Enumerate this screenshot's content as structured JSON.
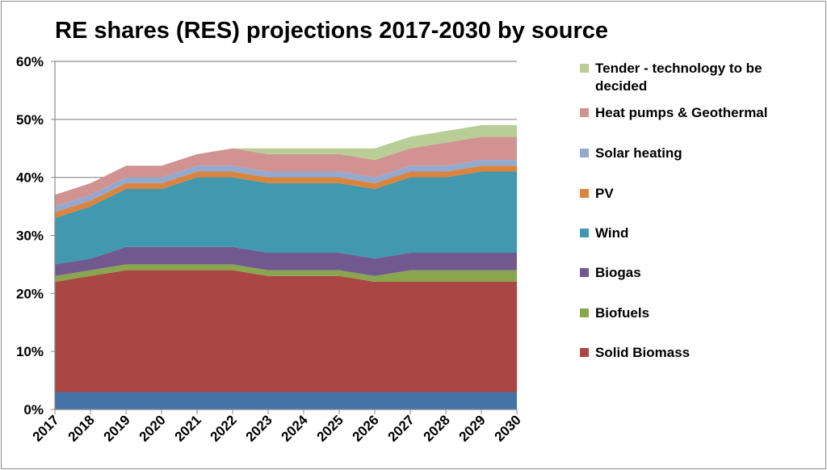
{
  "chart_data": {
    "type": "area",
    "stacked": true,
    "title": "RE shares (RES) projections 2017-2030 by source",
    "xlabel": "",
    "ylabel": "",
    "categories": [
      "2017",
      "2018",
      "2019",
      "2020",
      "2021",
      "2022",
      "2023",
      "2024",
      "2025",
      "2026",
      "2027",
      "2028",
      "2029",
      "2030"
    ],
    "ylim": [
      0,
      60
    ],
    "yticks": [
      "0%",
      "10%",
      "20%",
      "30%",
      "40%",
      "50%",
      "60%"
    ],
    "grid": "horizontal",
    "legend_position": "right",
    "series": [
      {
        "color": "#4572a7",
        "values": [
          3,
          3,
          3,
          3,
          3,
          3,
          3,
          3,
          3,
          3,
          3,
          3,
          3,
          3
        ]
      },
      {
        "name": "Solid Biomass",
        "color": "#aa4643",
        "values": [
          19,
          20,
          21,
          21,
          21,
          21,
          20,
          20,
          20,
          19,
          19,
          19,
          19,
          19
        ]
      },
      {
        "name": "Biofuels",
        "color": "#89a54e",
        "values": [
          1,
          1,
          1,
          1,
          1,
          1,
          1,
          1,
          1,
          1,
          2,
          2,
          2,
          2
        ]
      },
      {
        "name": "Biogas",
        "color": "#71588f",
        "values": [
          2,
          2,
          3,
          3,
          3,
          3,
          3,
          3,
          3,
          3,
          3,
          3,
          3,
          3
        ]
      },
      {
        "name": "Wind",
        "color": "#4198af",
        "values": [
          8,
          9,
          10,
          10,
          12,
          12,
          12,
          12,
          12,
          12,
          13,
          13,
          14,
          14
        ]
      },
      {
        "name": "PV",
        "color": "#db843d",
        "values": [
          1,
          1,
          1,
          1,
          1,
          1,
          1,
          1,
          1,
          1,
          1,
          1,
          1,
          1
        ]
      },
      {
        "name": "Solar heating",
        "color": "#93a9cf",
        "values": [
          1,
          1,
          1,
          1,
          1,
          1,
          1,
          1,
          1,
          1,
          1,
          1,
          1,
          1
        ]
      },
      {
        "name": "Heat pumps & Geothermal",
        "color": "#d19392",
        "values": [
          2,
          2,
          2,
          2,
          2,
          3,
          3,
          3,
          3,
          3,
          3,
          4,
          4,
          4
        ]
      },
      {
        "name": "Tender - technology to be decided",
        "color": "#b9cd96",
        "values": [
          0,
          0,
          0,
          0,
          0,
          0,
          1,
          1,
          1,
          2,
          2,
          2,
          2,
          2
        ]
      }
    ]
  }
}
